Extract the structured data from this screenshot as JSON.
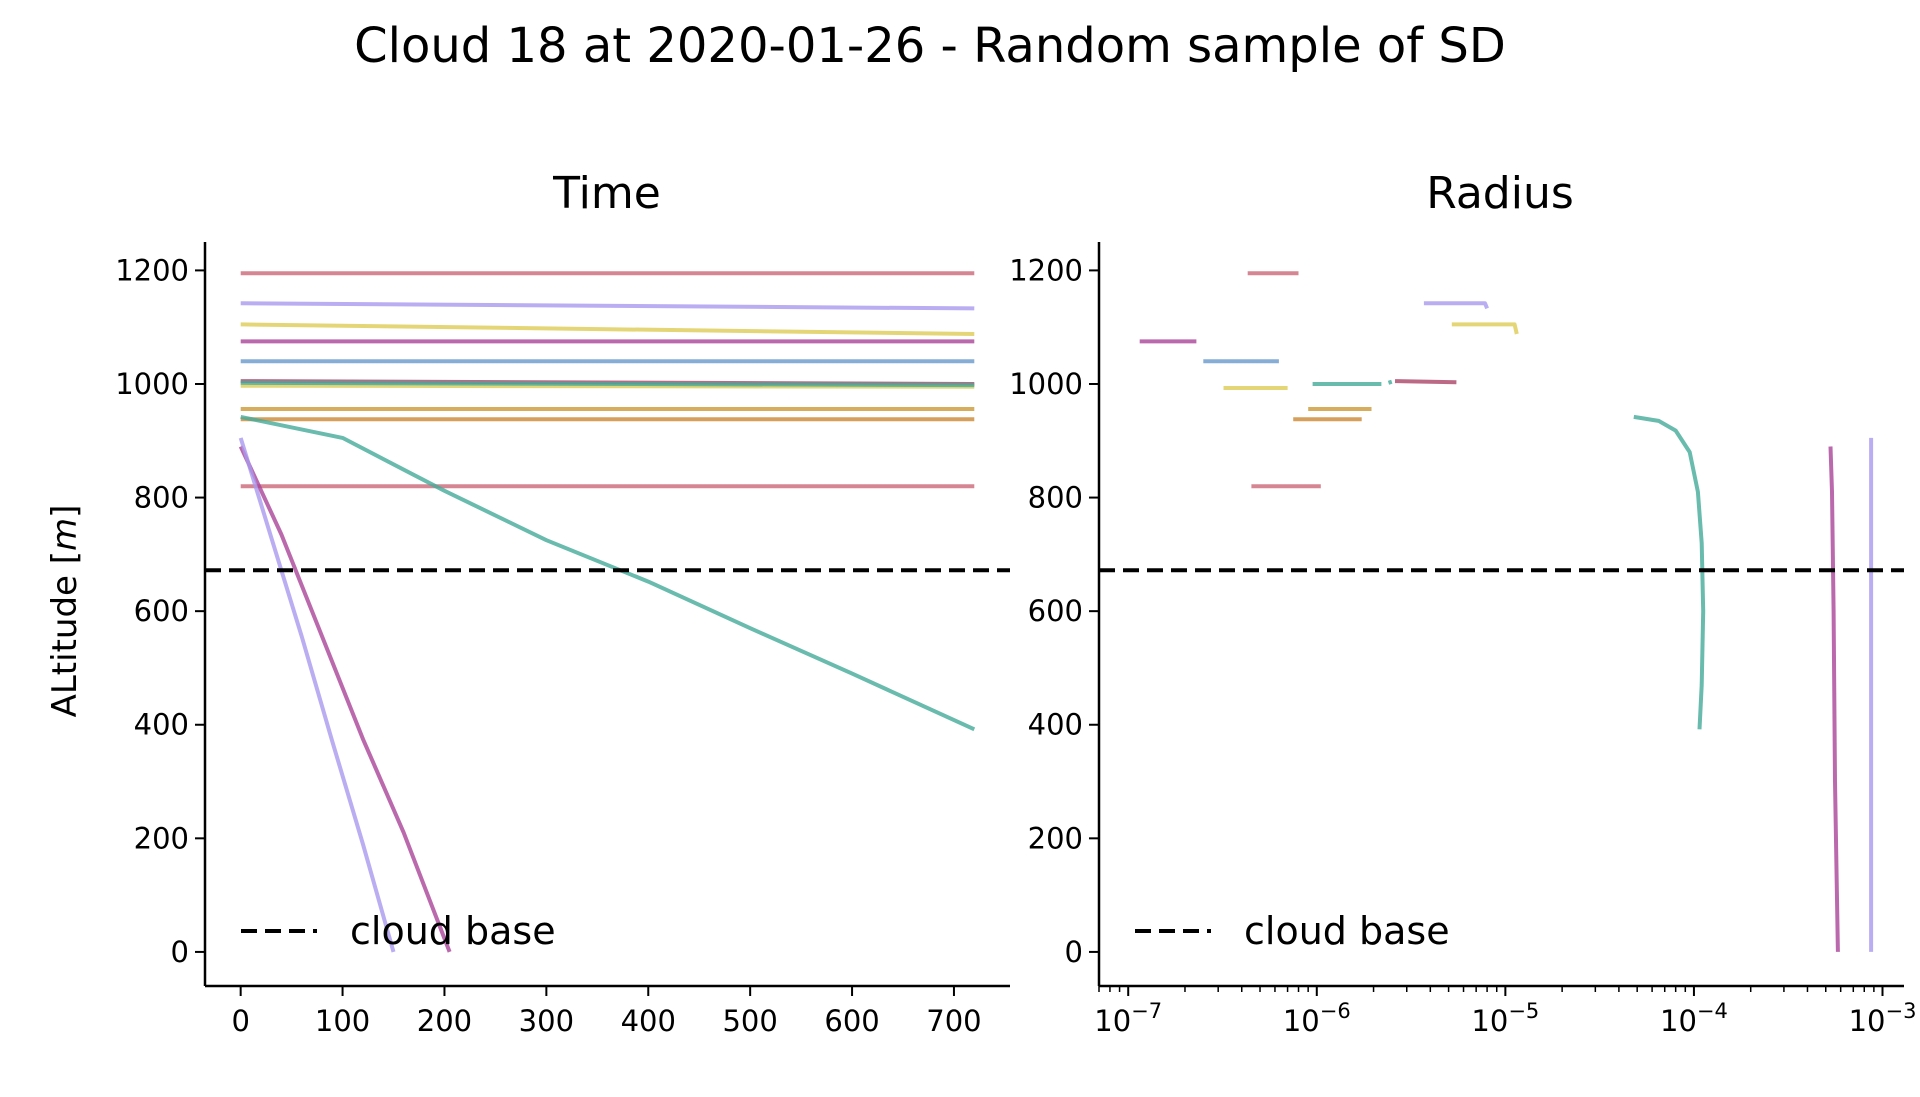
{
  "title": "Cloud 18 at 2020-01-26 - Random sample of SD",
  "chart_data": [
    {
      "type": "line",
      "subtitle": "Time",
      "ylabel": "ALtitude [m]",
      "ylabel_prefix": "ALtitude [",
      "ylabel_unit": "m",
      "ylabel_suffix": "]",
      "xlim": [
        -35,
        755
      ],
      "ylim": [
        -60,
        1250
      ],
      "xticks": [
        0,
        100,
        200,
        300,
        400,
        500,
        600,
        700
      ],
      "xtick_labels": [
        "0",
        "100",
        "200",
        "300",
        "400",
        "500",
        "600",
        "700"
      ],
      "yticks": [
        0,
        200,
        400,
        600,
        800,
        1000,
        1200
      ],
      "ytick_labels": [
        "0",
        "200",
        "400",
        "600",
        "800",
        "1000",
        "1200"
      ],
      "cloud_base": 672,
      "legend": {
        "label": "cloud base",
        "position": "bottom-left"
      },
      "series": [
        {
          "color": "#cc6677",
          "x": [
            0,
            720
          ],
          "y": [
            1195,
            1195
          ]
        },
        {
          "color": "#aa99ee",
          "x": [
            0,
            720
          ],
          "y": [
            1142,
            1133
          ]
        },
        {
          "color": "#ddcc55",
          "x": [
            0,
            720
          ],
          "y": [
            1105,
            1088
          ]
        },
        {
          "color": "#aa4499",
          "x": [
            0,
            720
          ],
          "y": [
            1075,
            1075
          ]
        },
        {
          "color": "#6699cc",
          "x": [
            0,
            720
          ],
          "y": [
            1040,
            1040
          ]
        },
        {
          "color": "#aa4466",
          "x": [
            0,
            720
          ],
          "y": [
            1005,
            1000
          ]
        },
        {
          "color": "#ddcc55",
          "x": [
            0,
            720
          ],
          "y": [
            997,
            995
          ]
        },
        {
          "color": "#44aa99",
          "x": [
            0,
            720
          ],
          "y": [
            1002,
            998
          ]
        },
        {
          "color": "#cc9933",
          "x": [
            0,
            720
          ],
          "y": [
            956,
            956
          ]
        },
        {
          "color": "#cc8833",
          "x": [
            0,
            720
          ],
          "y": [
            938,
            938
          ]
        },
        {
          "color": "#cc6677",
          "x": [
            0,
            720
          ],
          "y": [
            820,
            820
          ]
        },
        {
          "color": "#44aa99",
          "x": [
            0,
            100,
            200,
            300,
            400,
            500,
            600,
            720
          ],
          "y": [
            942,
            905,
            812,
            725,
            652,
            570,
            490,
            392
          ]
        },
        {
          "color": "#aa4499",
          "x": [
            0,
            40,
            80,
            120,
            160,
            205
          ],
          "y": [
            890,
            735,
            555,
            375,
            210,
            0
          ]
        },
        {
          "color": "#aa99ee",
          "x": [
            0,
            30,
            60,
            90,
            120,
            150
          ],
          "y": [
            905,
            730,
            555,
            370,
            190,
            0
          ]
        }
      ]
    },
    {
      "type": "line",
      "subtitle": "Radius",
      "xscale": "log",
      "xlim": [
        7e-08,
        0.0013
      ],
      "ylim": [
        -60,
        1250
      ],
      "xticks": [
        1e-07,
        1e-06,
        1e-05,
        0.0001,
        0.001
      ],
      "xtick_labels": [
        {
          "base": "10",
          "exp": "−7"
        },
        {
          "base": "10",
          "exp": "−6"
        },
        {
          "base": "10",
          "exp": "−5"
        },
        {
          "base": "10",
          "exp": "−4"
        },
        {
          "base": "10",
          "exp": "−3"
        }
      ],
      "yticks": [
        0,
        200,
        400,
        600,
        800,
        1000,
        1200
      ],
      "ytick_labels": [
        "0",
        "200",
        "400",
        "600",
        "800",
        "1000",
        "1200"
      ],
      "cloud_base": 672,
      "legend": {
        "label": "cloud base",
        "position": "bottom-left"
      },
      "series": [
        {
          "color": "#cc6677",
          "x": [
            4.3e-07,
            8e-07
          ],
          "y": [
            1195,
            1195
          ]
        },
        {
          "color": "#aa99ee",
          "x": [
            3.7e-06,
            7.8e-06,
            8e-06
          ],
          "y": [
            1142,
            1142,
            1133
          ]
        },
        {
          "color": "#ddcc55",
          "x": [
            5.2e-06,
            1.12e-05,
            1.15e-05
          ],
          "y": [
            1105,
            1105,
            1088
          ]
        },
        {
          "color": "#aa4499",
          "x": [
            1.15e-07,
            2.3e-07
          ],
          "y": [
            1075,
            1075
          ]
        },
        {
          "color": "#6699cc",
          "x": [
            2.5e-07,
            6.3e-07
          ],
          "y": [
            1040,
            1040
          ]
        },
        {
          "color": "#44aa99",
          "x": [
            9.5e-07,
            2.2e-06
          ],
          "y": [
            1000,
            1000
          ]
        },
        {
          "color": "#44aa99",
          "x": [
            2.4e-06,
            2.5e-06
          ],
          "y": [
            1002,
            1004
          ]
        },
        {
          "color": "#aa4466",
          "x": [
            2.6e-06,
            5.5e-06
          ],
          "y": [
            1005,
            1003
          ]
        },
        {
          "color": "#ddcc55",
          "x": [
            3.2e-07,
            7e-07
          ],
          "y": [
            993,
            993
          ]
        },
        {
          "color": "#cc9933",
          "x": [
            9e-07,
            1.95e-06
          ],
          "y": [
            956,
            956
          ]
        },
        {
          "color": "#cc8833",
          "x": [
            7.5e-07,
            1.73e-06
          ],
          "y": [
            938,
            938
          ]
        },
        {
          "color": "#cc6677",
          "x": [
            4.5e-07,
            1.05e-06
          ],
          "y": [
            820,
            820
          ]
        },
        {
          "color": "#44aa99",
          "x": [
            4.8e-05,
            6.5e-05,
            8e-05,
            9.5e-05,
            0.000105,
            0.00011,
            0.000112,
            0.00011,
            0.000107
          ],
          "y": [
            942,
            935,
            918,
            880,
            810,
            720,
            600,
            470,
            392
          ]
        },
        {
          "color": "#aa4499",
          "x": [
            0.00053,
            0.00054,
            0.00055,
            0.00056,
            0.00058
          ],
          "y": [
            890,
            810,
            600,
            300,
            0
          ]
        },
        {
          "color": "#aa99ee",
          "x": [
            0.00087,
            0.00087
          ],
          "y": [
            905,
            0
          ]
        }
      ]
    }
  ]
}
